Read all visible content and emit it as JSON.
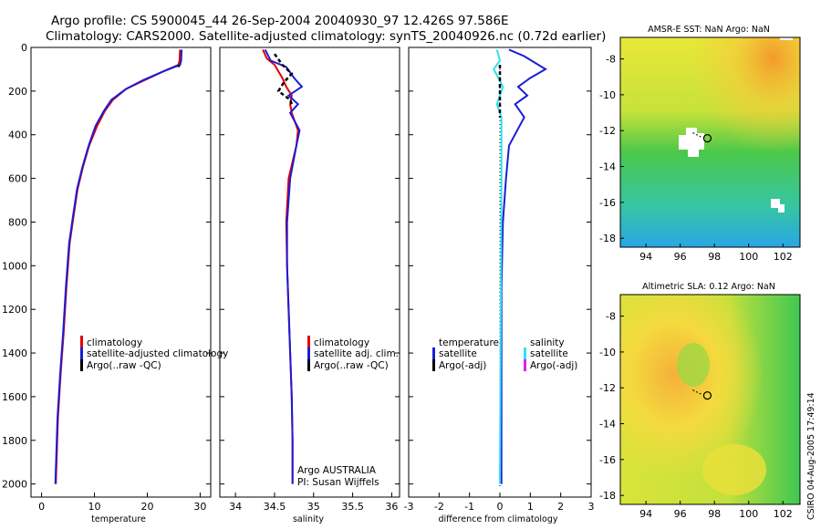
{
  "header": {
    "line1": "Argo profile: CS 5900045_44 26-Sep-2004 20040930_97 12.426S 97.586E",
    "line2": "Climatology: CARS2000. Satellite-adjusted climatology: synTS_20040926.nc (0.72d earlier)"
  },
  "side_label": "CSIRO 04-Aug-2005 17:49:14",
  "colors": {
    "red": "#e00000",
    "blue": "#1c1cd8",
    "black": "#000000",
    "cyan": "#30e0f0",
    "magenta": "#e020e0"
  },
  "chart_data": [
    {
      "id": "temperature",
      "type": "line",
      "xlabel": "temperature",
      "xlim": [
        -2,
        32
      ],
      "ylim": [
        0,
        2060
      ],
      "xticks": [
        0,
        10,
        20,
        30
      ],
      "yticks": [
        0,
        200,
        400,
        600,
        800,
        1000,
        1200,
        1400,
        1600,
        1800,
        2000
      ],
      "series": [
        {
          "name": "climatology",
          "color": "red",
          "x": [
            26.2,
            26.1,
            25.9,
            23.0,
            19.5,
            16.0,
            13.5,
            12.0,
            10.5,
            9.0,
            7.8,
            6.8,
            6.0,
            5.3,
            4.7,
            4.2,
            3.6,
            3.1,
            2.7
          ],
          "y": [
            10,
            60,
            80,
            110,
            150,
            190,
            240,
            290,
            360,
            450,
            550,
            650,
            780,
            900,
            1100,
            1300,
            1500,
            1700,
            2000
          ]
        },
        {
          "name": "satellite-adjusted climatology",
          "color": "blue",
          "x": [
            26.5,
            26.4,
            26.2,
            23.0,
            19.2,
            16.0,
            13.2,
            11.8,
            10.2,
            8.9,
            7.7,
            6.7,
            5.9,
            5.2,
            4.6,
            4.1,
            3.5,
            3.0,
            2.6
          ],
          "y": [
            10,
            60,
            80,
            110,
            150,
            190,
            240,
            290,
            360,
            450,
            550,
            650,
            780,
            900,
            1100,
            1300,
            1500,
            1700,
            2000
          ]
        },
        {
          "name": "Argo(..raw -QC)",
          "color": "black",
          "x": [
            26.0,
            25.9
          ],
          "y": [
            80,
            90
          ]
        }
      ],
      "legend": [
        "climatology",
        "satellite-adjusted climatology",
        "Argo(..raw -QC)"
      ]
    },
    {
      "id": "salinity",
      "type": "line",
      "xlabel": "salinity",
      "xlim": [
        33.8,
        36.1
      ],
      "ylim": [
        0,
        2060
      ],
      "xticks": [
        34,
        34.5,
        35,
        35.5,
        36
      ],
      "series": [
        {
          "name": "climatology",
          "color": "red",
          "x": [
            34.35,
            34.4,
            34.5,
            34.6,
            34.65,
            34.72,
            34.7,
            34.72,
            34.8,
            34.78,
            34.68,
            34.65,
            34.66,
            34.68,
            34.7,
            34.72,
            34.73,
            34.73
          ],
          "y": [
            10,
            50,
            80,
            140,
            180,
            220,
            260,
            300,
            380,
            450,
            600,
            800,
            1000,
            1200,
            1400,
            1600,
            1800,
            2000
          ]
        },
        {
          "name": "satellite adj. clim.",
          "color": "blue",
          "x": [
            34.38,
            34.45,
            34.65,
            34.75,
            34.85,
            34.68,
            34.8,
            34.7,
            34.82,
            34.78,
            34.7,
            34.66,
            34.66,
            34.68,
            34.7,
            34.72,
            34.73,
            34.73
          ],
          "y": [
            10,
            60,
            90,
            140,
            180,
            220,
            260,
            300,
            380,
            450,
            600,
            800,
            1000,
            1200,
            1400,
            1600,
            1800,
            2000
          ]
        },
        {
          "name": "Argo(..raw -QC)",
          "color": "black",
          "x": [
            34.5,
            34.6,
            34.72,
            34.62,
            34.55,
            34.7,
            34.72
          ],
          "y": [
            30,
            80,
            120,
            160,
            200,
            240,
            260
          ]
        }
      ],
      "legend": [
        "climatology",
        "satellite adj. clim.",
        "Argo(..raw -QC)"
      ],
      "annotation": [
        "Argo AUSTRALIA",
        "PI: Susan Wijffels"
      ]
    },
    {
      "id": "difference",
      "type": "line",
      "xlabel": "difference from climatology",
      "xlim": [
        -3,
        3
      ],
      "ylim": [
        0,
        2060
      ],
      "xticks": [
        -3,
        -2,
        -1,
        0,
        1,
        2,
        3
      ],
      "series": [
        {
          "name": "temperature satellite",
          "color": "blue",
          "x": [
            0.3,
            0.8,
            1.5,
            1.0,
            0.6,
            0.9,
            0.5,
            0.8,
            0.3,
            0.2,
            0.1,
            0.05,
            0.05,
            0.05
          ],
          "y": [
            10,
            40,
            100,
            140,
            180,
            220,
            260,
            320,
            450,
            600,
            800,
            1100,
            1600,
            2000
          ]
        },
        {
          "name": "salinity satellite",
          "color": "cyan",
          "x": [
            -0.1,
            0.0,
            -0.2,
            0.1,
            -0.1,
            0.05,
            0.05,
            0.0
          ],
          "y": [
            10,
            60,
            100,
            180,
            260,
            320,
            600,
            2000
          ]
        },
        {
          "name": "temperature Argo(-adj)",
          "color": "black",
          "x": [
            0.0,
            0.0,
            0.0
          ],
          "y": [
            80,
            200,
            320
          ]
        }
      ],
      "legend_left": [
        "temperature",
        "satellite",
        "Argo(-adj)"
      ],
      "legend_right": [
        "salinity",
        "satellite",
        "Argo(-adj)"
      ]
    },
    {
      "id": "sst_map",
      "type": "heatmap",
      "title": "AMSR-E SST: NaN Argo: NaN",
      "xlim": [
        92.5,
        103
      ],
      "ylim": [
        -18.5,
        -6.8
      ],
      "xticks": [
        94,
        96,
        98,
        100,
        102
      ],
      "yticks": [
        -8,
        -10,
        -12,
        -14,
        -16,
        -18
      ],
      "marker": [
        97.586,
        -12.426
      ]
    },
    {
      "id": "sla_map",
      "type": "heatmap",
      "title": "Altimetric SLA: 0.12 Argo: NaN",
      "xlim": [
        92.5,
        103
      ],
      "ylim": [
        -18.5,
        -6.8
      ],
      "xticks": [
        94,
        96,
        98,
        100,
        102
      ],
      "yticks": [
        -8,
        -10,
        -12,
        -14,
        -16,
        -18
      ],
      "marker": [
        97.586,
        -12.426
      ]
    }
  ]
}
